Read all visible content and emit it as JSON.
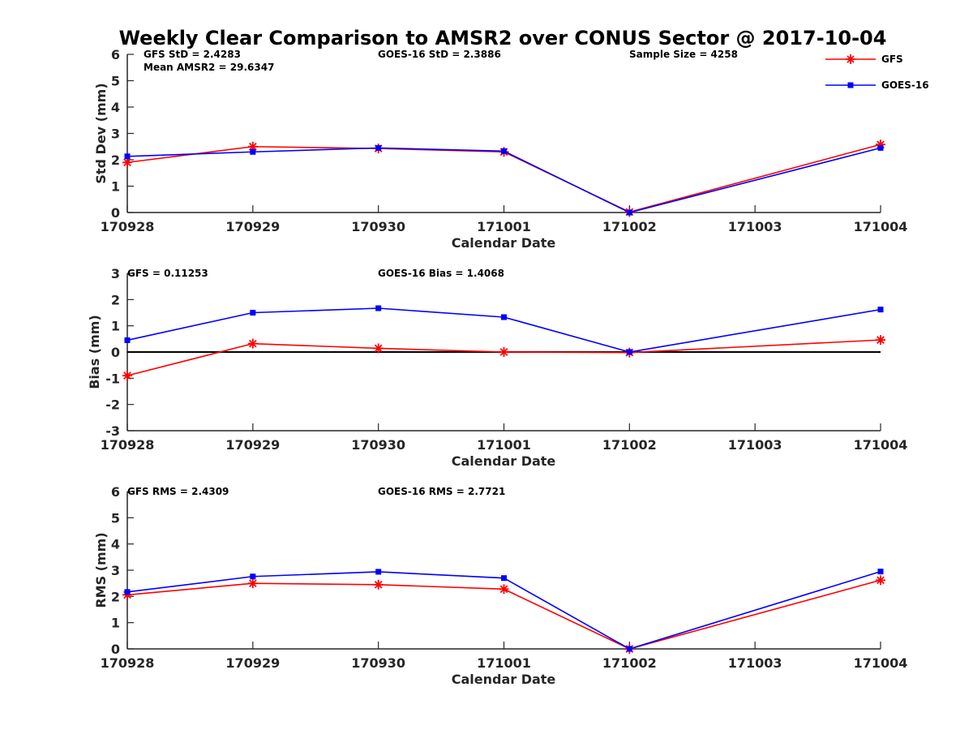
{
  "title": "Weekly Clear Comparison to AMSR2 over CONUS Sector @ 2017-10-04",
  "legend": [
    {
      "name": "GFS",
      "color": "#ff0000",
      "marker": "asterisk"
    },
    {
      "name": "GOES-16",
      "color": "#0000ff",
      "marker": "square"
    }
  ],
  "chart_data": [
    {
      "type": "line",
      "x": [
        "170928",
        "170929",
        "170930",
        "171001",
        "171002",
        "171003",
        "171004"
      ],
      "xlabel": "Calendar Date",
      "ylabel": "Std Dev (mm)",
      "ylim": [
        0,
        6
      ],
      "yticks": [
        0,
        1,
        2,
        3,
        4,
        5,
        6
      ],
      "zero_line": false,
      "annotations": {
        "left": "GFS StD = 2.4283",
        "left2": "Mean AMSR2 = 29.6347",
        "center": "GOES-16 StD = 2.3886",
        "right": "Sample Size = 4258"
      },
      "series": [
        {
          "name": "GFS",
          "values": [
            1.9,
            2.5,
            2.43,
            2.3,
            0.02,
            null,
            2.58
          ]
        },
        {
          "name": "GOES-16",
          "values": [
            2.13,
            2.3,
            2.45,
            2.33,
            0.0,
            null,
            2.45
          ]
        }
      ]
    },
    {
      "type": "line",
      "x": [
        "170928",
        "170929",
        "170930",
        "171001",
        "171002",
        "171003",
        "171004"
      ],
      "xlabel": "Calendar Date",
      "ylabel": "Bias (mm)",
      "ylim": [
        -3,
        3
      ],
      "yticks": [
        -3,
        -2,
        -1,
        0,
        1,
        2,
        3
      ],
      "zero_line": true,
      "annotations": {
        "left": "GFS = 0.11253",
        "center": "GOES-16 Bias  = 1.4068"
      },
      "series": [
        {
          "name": "GFS",
          "values": [
            -0.9,
            0.32,
            0.14,
            0.0,
            -0.02,
            null,
            0.46
          ]
        },
        {
          "name": "GOES-16",
          "values": [
            0.45,
            1.5,
            1.67,
            1.33,
            0.0,
            null,
            1.62
          ]
        }
      ]
    },
    {
      "type": "line",
      "x": [
        "170928",
        "170929",
        "170930",
        "171001",
        "171002",
        "171003",
        "171004"
      ],
      "xlabel": "Calendar Date",
      "ylabel": "RMS (mm)",
      "ylim": [
        0,
        6
      ],
      "yticks": [
        0,
        1,
        2,
        3,
        4,
        5,
        6
      ],
      "zero_line": false,
      "annotations": {
        "left": "GFS RMS = 2.4309",
        "center": "GOES-16 RMS = 2.7721"
      },
      "series": [
        {
          "name": "GFS",
          "values": [
            2.06,
            2.5,
            2.45,
            2.28,
            0.0,
            null,
            2.62
          ]
        },
        {
          "name": "GOES-16",
          "values": [
            2.17,
            2.76,
            2.94,
            2.7,
            0.0,
            null,
            2.95
          ]
        }
      ]
    }
  ]
}
